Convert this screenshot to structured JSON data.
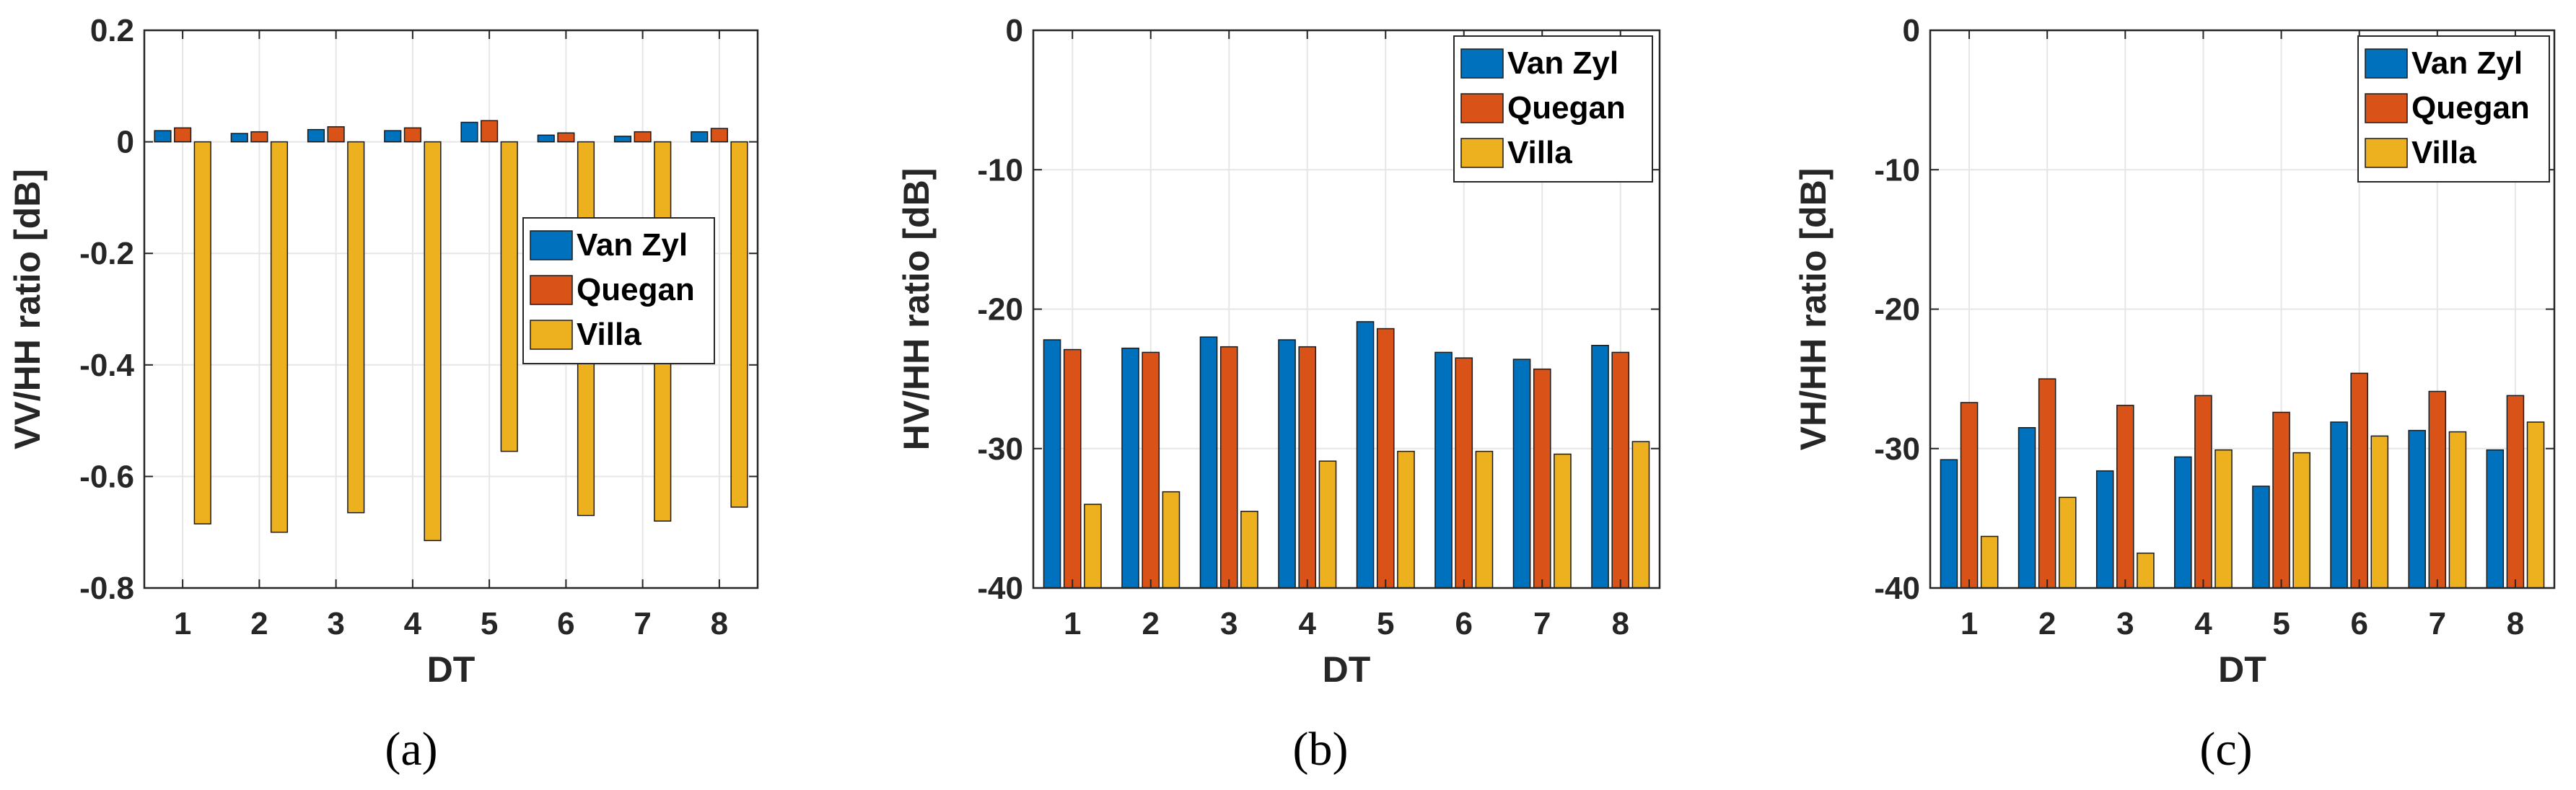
{
  "chart_data": [
    {
      "type": "bar",
      "caption": "(a)",
      "xlabel": "DT",
      "ylabel": "VV/HH ratio [dB]",
      "ylim": [
        -0.8,
        0.2
      ],
      "yticks": [
        -0.8,
        -0.6,
        -0.4,
        -0.2,
        0,
        0.2
      ],
      "ytick_labels": [
        "-0.8",
        "-0.6",
        "-0.4",
        "-0.2",
        "0",
        "0.2"
      ],
      "categories": [
        "1",
        "2",
        "3",
        "4",
        "5",
        "6",
        "7",
        "8"
      ],
      "grid": true,
      "legend_position": "middle-right",
      "series": [
        {
          "name": "Van Zyl",
          "color": "#0072BD",
          "values": [
            0.02,
            0.015,
            0.022,
            0.02,
            0.035,
            0.012,
            0.01,
            0.018
          ]
        },
        {
          "name": "Quegan",
          "color": "#D95319",
          "values": [
            0.025,
            0.018,
            0.027,
            0.025,
            0.038,
            0.016,
            0.018,
            0.024
          ]
        },
        {
          "name": "Villa",
          "color": "#EDB120",
          "values": [
            -0.685,
            -0.7,
            -0.665,
            -0.715,
            -0.555,
            -0.67,
            -0.68,
            -0.655
          ]
        }
      ]
    },
    {
      "type": "bar",
      "caption": "(b)",
      "xlabel": "DT",
      "ylabel": "HV/HH ratio [dB]",
      "ylim": [
        -40,
        0
      ],
      "yticks": [
        -40,
        -30,
        -20,
        -10,
        0
      ],
      "ytick_labels": [
        "-40",
        "-30",
        "-20",
        "-10",
        "0"
      ],
      "categories": [
        "1",
        "2",
        "3",
        "4",
        "5",
        "6",
        "7",
        "8"
      ],
      "grid": true,
      "legend_position": "top-right",
      "series": [
        {
          "name": "Van Zyl",
          "color": "#0072BD",
          "values": [
            -22.2,
            -22.8,
            -22.0,
            -22.2,
            -20.9,
            -23.1,
            -23.6,
            -22.6
          ]
        },
        {
          "name": "Quegan",
          "color": "#D95319",
          "values": [
            -22.9,
            -23.1,
            -22.7,
            -22.7,
            -21.4,
            -23.5,
            -24.3,
            -23.1
          ]
        },
        {
          "name": "Villa",
          "color": "#EDB120",
          "values": [
            -34.0,
            -33.1,
            -34.5,
            -30.9,
            -30.2,
            -30.2,
            -30.4,
            -29.5
          ]
        }
      ]
    },
    {
      "type": "bar",
      "caption": "(c)",
      "xlabel": "DT",
      "ylabel": "VH/HH ratio [dB]",
      "ylim": [
        -40,
        0
      ],
      "yticks": [
        -40,
        -30,
        -20,
        -10,
        0
      ],
      "ytick_labels": [
        "-40",
        "-30",
        "-20",
        "-10",
        "0"
      ],
      "categories": [
        "1",
        "2",
        "3",
        "4",
        "5",
        "6",
        "7",
        "8"
      ],
      "grid": true,
      "legend_position": "top-right",
      "series": [
        {
          "name": "Van Zyl",
          "color": "#0072BD",
          "values": [
            -30.8,
            -28.5,
            -31.6,
            -30.6,
            -32.7,
            -28.1,
            -28.7,
            -30.1
          ]
        },
        {
          "name": "Quegan",
          "color": "#D95319",
          "values": [
            -26.7,
            -25.0,
            -26.9,
            -26.2,
            -27.4,
            -24.6,
            -25.9,
            -26.2
          ]
        },
        {
          "name": "Villa",
          "color": "#EDB120",
          "values": [
            -36.3,
            -33.5,
            -37.5,
            -30.1,
            -30.3,
            -29.1,
            -28.8,
            -28.1
          ]
        }
      ]
    }
  ]
}
